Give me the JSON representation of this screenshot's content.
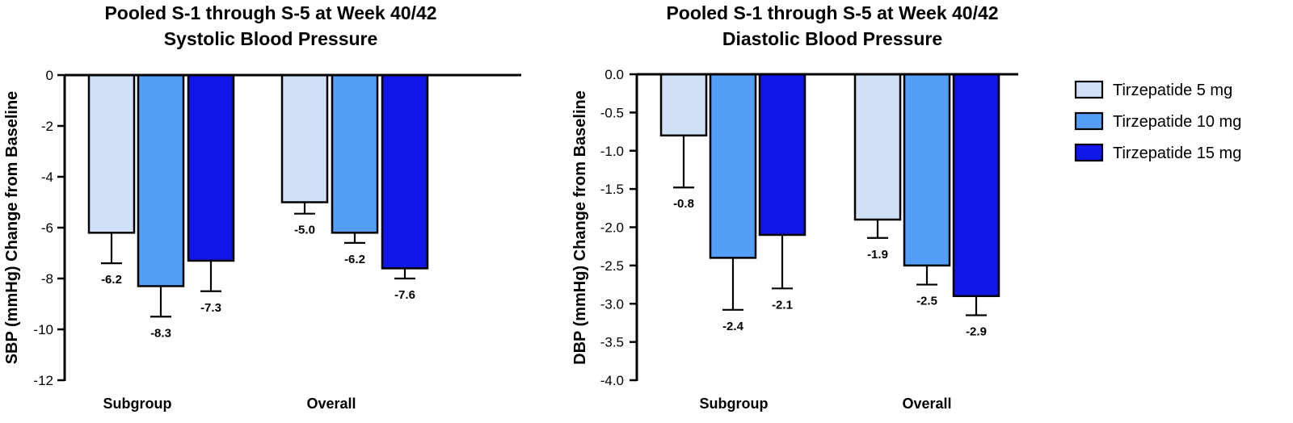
{
  "chart_data": [
    {
      "type": "bar",
      "title": "Pooled S-1 through S-5 at Week 40/42",
      "subtitle": "Systolic Blood  Pressure",
      "xlabel": "",
      "ylabel": "SBP (mmHg) Change from Baseline",
      "categories": [
        "Subgroup",
        "Overall"
      ],
      "ylim": [
        -12,
        0
      ],
      "yticks": [
        0,
        -2,
        -4,
        -6,
        -8,
        -10,
        -12
      ],
      "ytick_labels": [
        "0",
        "-2",
        "-4",
        "-6",
        "-8",
        "-10",
        "-12"
      ],
      "series": [
        {
          "name": "Tirzepatide 5 mg",
          "values": [
            -6.2,
            -5.0
          ],
          "labels": [
            "-6.2",
            "-5.0"
          ],
          "error": [
            1.2,
            0.45
          ]
        },
        {
          "name": "Tirzepatide 10 mg",
          "values": [
            -8.3,
            -6.2
          ],
          "labels": [
            "-8.3",
            "-6.2"
          ],
          "error": [
            1.2,
            0.4
          ]
        },
        {
          "name": "Tirzepatide 15 mg",
          "values": [
            -7.3,
            -7.6
          ],
          "labels": [
            "-7.3",
            "-7.6"
          ],
          "error": [
            1.2,
            0.4
          ]
        }
      ]
    },
    {
      "type": "bar",
      "title": "Pooled S-1 through S-5 at Week 40/42",
      "subtitle": "Diastolic Blood Pressure",
      "xlabel": "",
      "ylabel": "DBP (mmHg) Change from Baseline",
      "categories": [
        "Subgroup",
        "Overall"
      ],
      "ylim": [
        -4.0,
        0.0
      ],
      "yticks": [
        0,
        -0.5,
        -1,
        -1.5,
        -2,
        -2.5,
        -3,
        -3.5,
        -4
      ],
      "ytick_labels": [
        "0.0",
        "-0.5",
        "-1.0",
        "-1.5",
        "-2.0",
        "-2.5",
        "-3.0",
        "-3.5",
        "-4.0"
      ],
      "series": [
        {
          "name": "Tirzepatide 5 mg",
          "values": [
            -0.8,
            -1.9
          ],
          "labels": [
            "-0.8",
            "-1.9"
          ],
          "error": [
            0.68,
            0.24
          ]
        },
        {
          "name": "Tirzepatide 10 mg",
          "values": [
            -2.4,
            -2.5
          ],
          "labels": [
            "-2.4",
            "-2.5"
          ],
          "error": [
            0.68,
            0.25
          ]
        },
        {
          "name": "Tirzepatide 15 mg",
          "values": [
            -2.1,
            -2.9
          ],
          "labels": [
            "-2.1",
            "-2.9"
          ],
          "error": [
            0.7,
            0.25
          ]
        }
      ]
    }
  ],
  "legend": {
    "position": "right",
    "items": [
      {
        "label": "Tirzepatide 5 mg",
        "color": "#cfe0f7"
      },
      {
        "label": "Tirzepatide 10 mg",
        "color": "#559ef7"
      },
      {
        "label": "Tirzepatide 15 mg",
        "color": "#1117e6"
      }
    ]
  }
}
